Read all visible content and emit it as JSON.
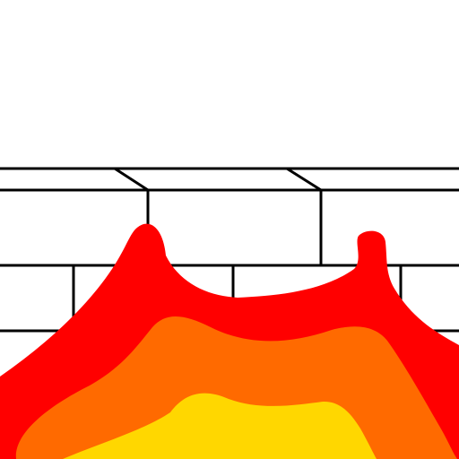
{
  "scene": {
    "background_color": "#ffffff",
    "wall": {
      "line_color": "#000000",
      "description_icon": "brick-wall-icon"
    },
    "fire": {
      "outer_color": "#ff0000",
      "middle_color": "#ff6a00",
      "inner_color": "#ffd700",
      "icon": "fire-icon"
    }
  }
}
